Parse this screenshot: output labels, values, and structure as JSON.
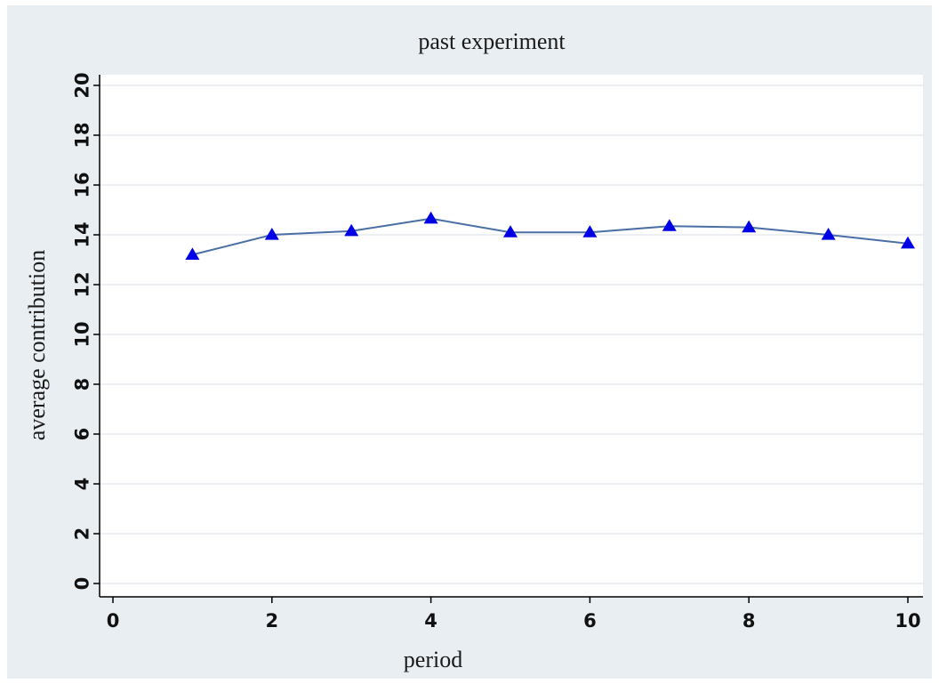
{
  "chart_data": {
    "type": "line",
    "title": "past experiment",
    "xlabel": "period",
    "ylabel": "average contribution",
    "xlim": [
      0,
      10
    ],
    "ylim": [
      0,
      20
    ],
    "x_ticks": [
      0,
      2,
      4,
      6,
      8,
      10
    ],
    "y_ticks": [
      0,
      2,
      4,
      6,
      8,
      10,
      12,
      14,
      16,
      18,
      20
    ],
    "grid": true,
    "legend": "none",
    "series": [
      {
        "x": [
          1,
          2,
          3,
          4,
          5,
          6,
          7,
          8,
          9,
          10
        ],
        "values": [
          13.2,
          14.0,
          14.15,
          14.65,
          14.1,
          14.1,
          14.35,
          14.3,
          14.0,
          13.65
        ],
        "line_color": "#4a6fa5",
        "marker": "triangle",
        "marker_color": "#0000e6"
      }
    ],
    "colors": {
      "outer_background": "#e9eef2",
      "plot_background": "#ffffff",
      "gridline": "#e6ecf0",
      "axis": "#000000"
    }
  }
}
